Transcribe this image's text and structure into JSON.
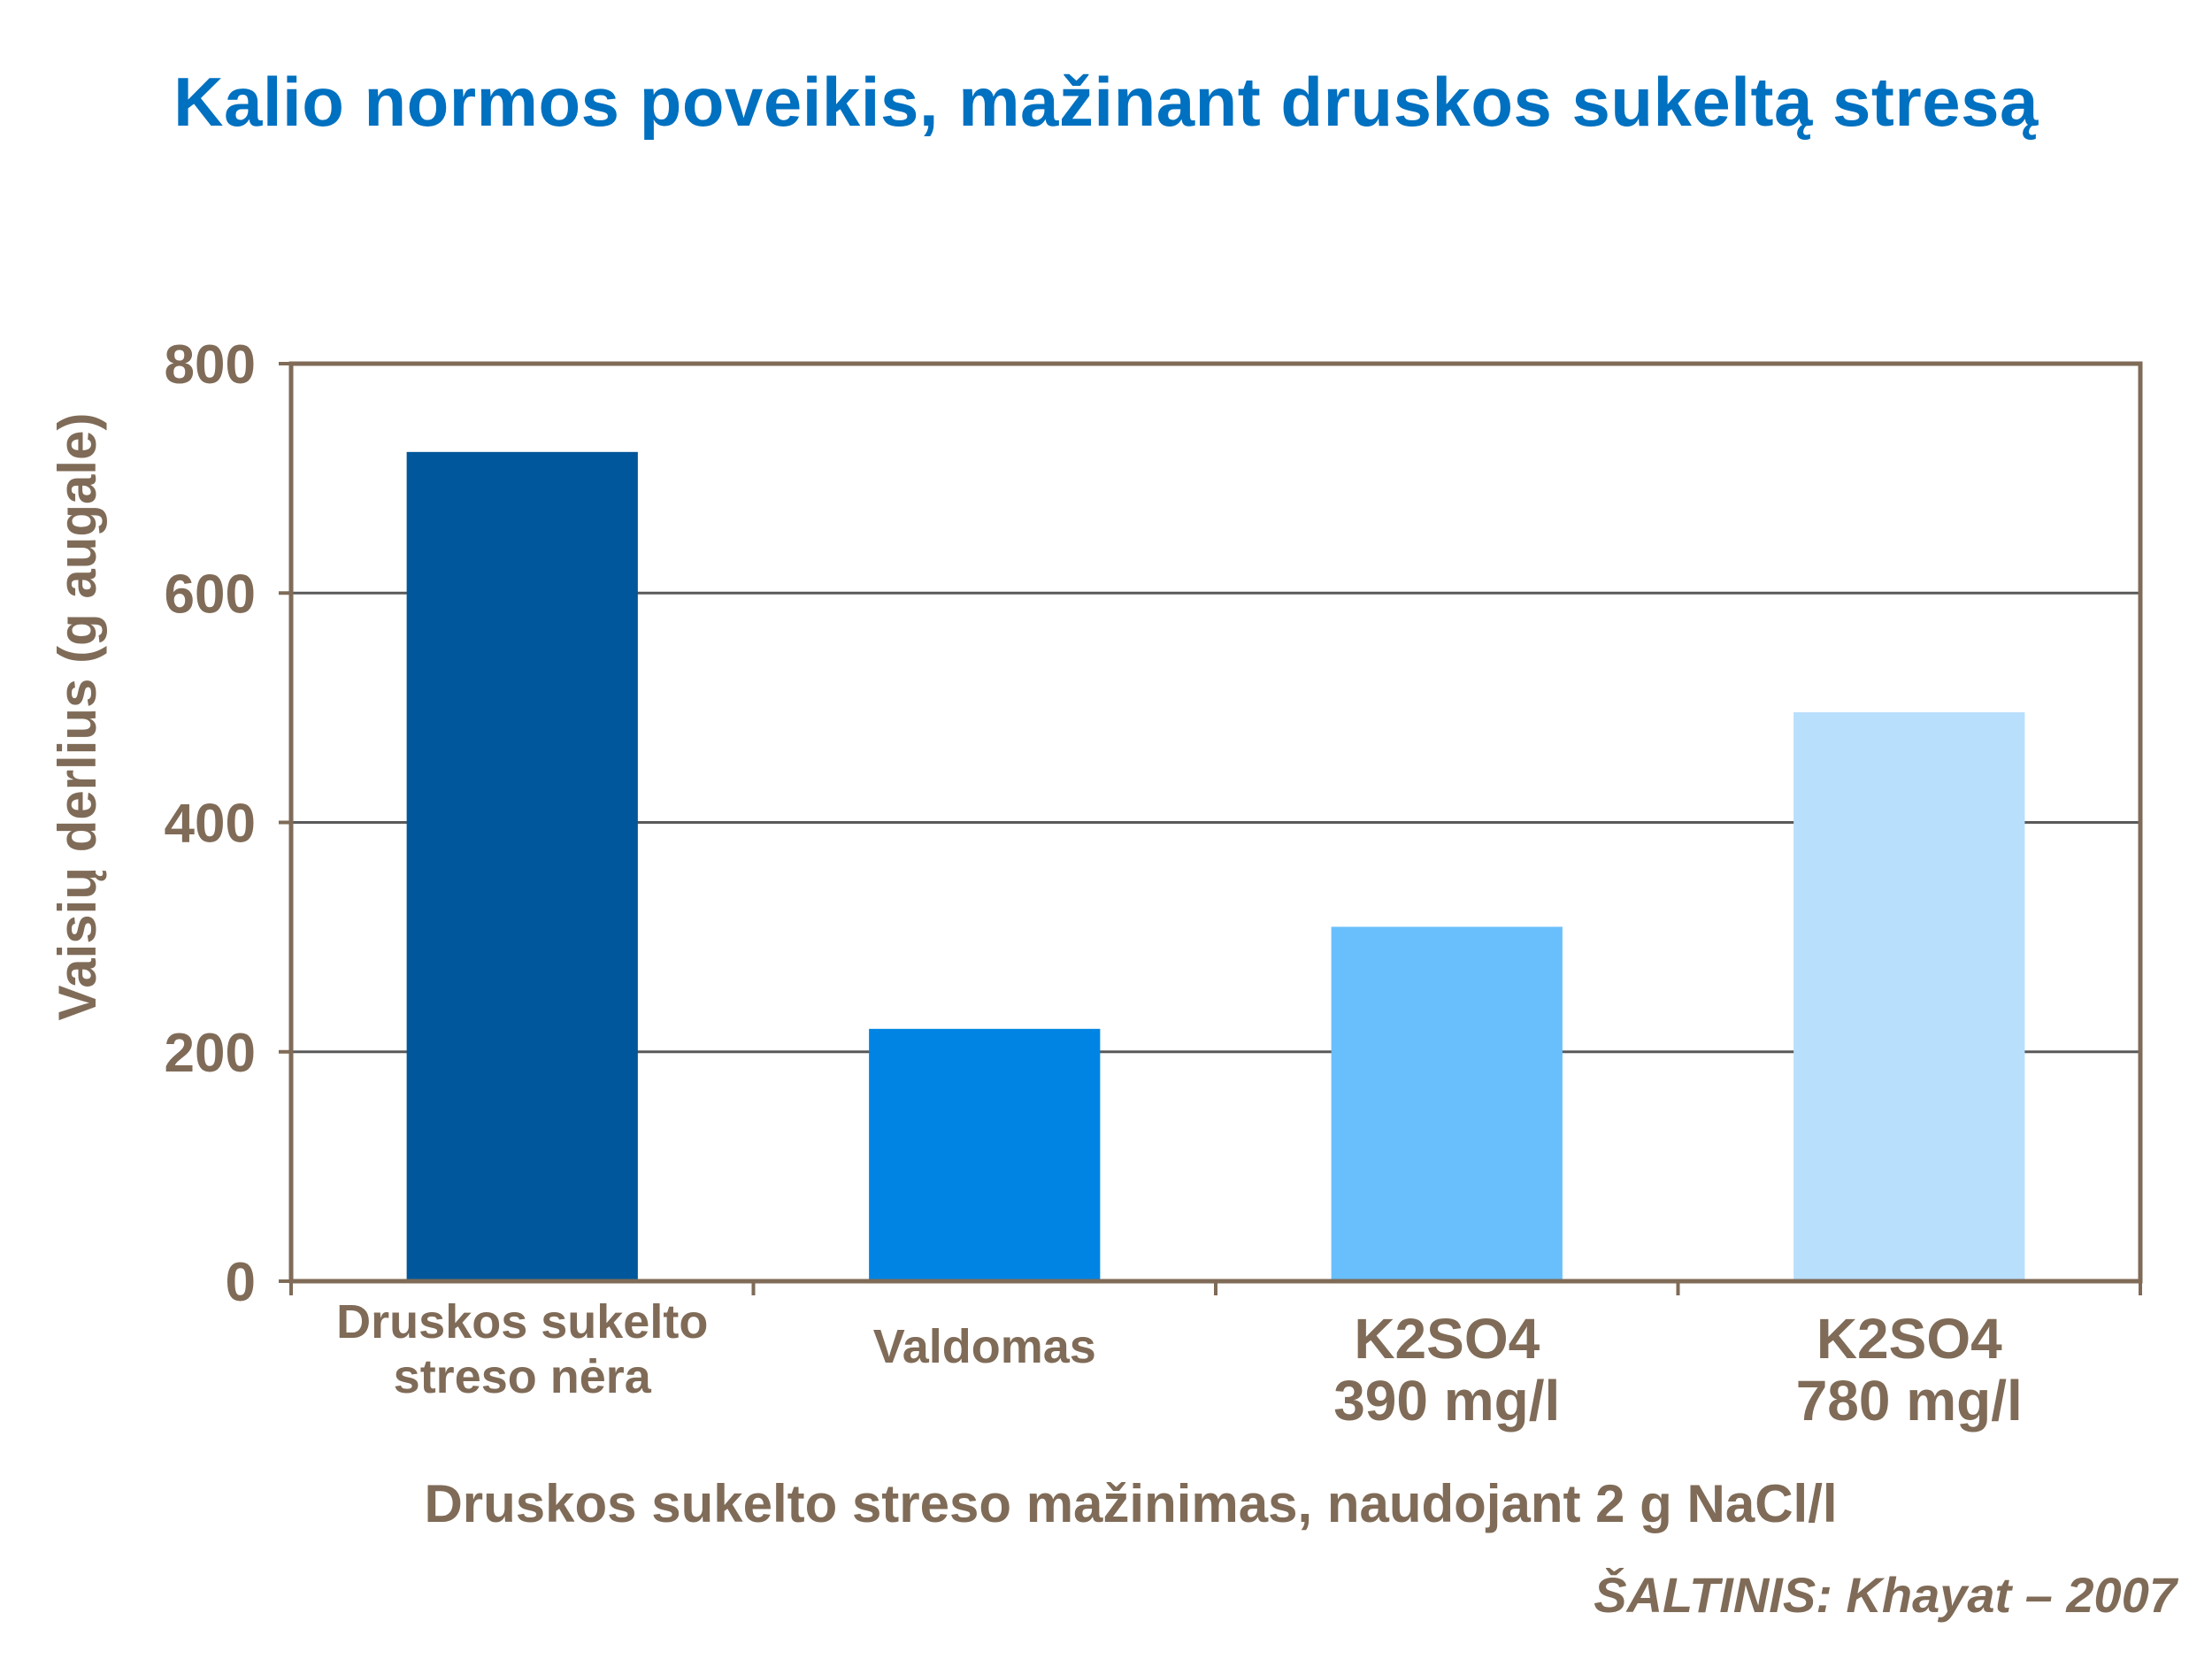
{
  "chart_data": {
    "type": "bar",
    "title": "Kalio normos poveikis, mažinant druskos sukeltą stresą",
    "categories": [
      [
        "Druskos sukelto",
        "streso nėra"
      ],
      [
        "Valdomas"
      ],
      [
        "K2SO4",
        "390 mg/l"
      ],
      [
        "K2SO4",
        "780 mg/l"
      ]
    ],
    "values": [
      723,
      220,
      309,
      496
    ],
    "colors": [
      "#01579b",
      "#0084e3",
      "#69bffc",
      "#b8dffc"
    ],
    "xlabel": "Druskos sukelto streso mažinimas, naudojant 2 g NaCl/l",
    "ylabel": "Vaisių derlius (g augale)",
    "ylim": [
      0,
      800
    ],
    "yticks": [
      0,
      200,
      400,
      600,
      800
    ],
    "grid": true,
    "legend": "none"
  },
  "source_note": "ŠALTINIS: Khayat – 2007",
  "colors": {
    "title": "#0070c0",
    "axis_text": "#7f6b57",
    "frame": "#7f6b57",
    "gridline": "#595959"
  }
}
